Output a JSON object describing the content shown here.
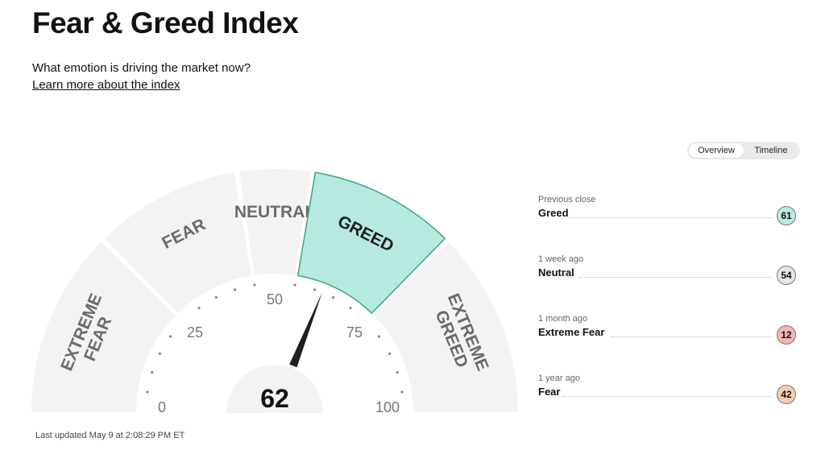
{
  "header": {
    "title": "Fear & Greed Index",
    "subtitle": "What emotion is driving the market now?",
    "learn_more": "Learn more about the index"
  },
  "view_toggle": {
    "tabs": [
      {
        "label": "Overview",
        "active": true
      },
      {
        "label": "Timeline",
        "active": false
      }
    ]
  },
  "gauge": {
    "value": 62,
    "value_text": "62",
    "range": [
      0,
      100
    ],
    "segments": [
      {
        "label_lines": [
          "EXTREME",
          "FEAR"
        ],
        "from": 0,
        "to": 25,
        "color": "#f3f3f3",
        "active": false
      },
      {
        "label_lines": [
          "FEAR"
        ],
        "from": 25,
        "to": 45,
        "color": "#f3f3f3",
        "active": false
      },
      {
        "label_lines": [
          "NEUTRAL"
        ],
        "from": 45,
        "to": 55,
        "color": "#f3f3f3",
        "active": false
      },
      {
        "label_lines": [
          "GREED"
        ],
        "from": 55,
        "to": 75,
        "color": "#b6e9e0",
        "active": true
      },
      {
        "label_lines": [
          "EXTREME",
          "GREED"
        ],
        "from": 75,
        "to": 100,
        "color": "#f3f3f3",
        "active": false
      }
    ],
    "ticks": [
      {
        "value": 0,
        "label": "0"
      },
      {
        "value": 25,
        "label": "25"
      },
      {
        "value": 50,
        "label": "50"
      },
      {
        "value": 75,
        "label": "75"
      },
      {
        "value": 100,
        "label": "100"
      }
    ],
    "active_border_color": "#3aa77a",
    "needle_color": "#1f1f1f"
  },
  "last_updated": "Last updated May 9 at 2:08:29 PM ET",
  "history": [
    {
      "period": "Previous close",
      "rating": "Greed",
      "value": "61",
      "color": "#b9ebe0"
    },
    {
      "period": "1 week ago",
      "rating": "Neutral",
      "value": "54",
      "color": "#e6e6e6"
    },
    {
      "period": "1 month ago",
      "rating": "Extreme Fear",
      "value": "12",
      "color": "#f5b6b6"
    },
    {
      "period": "1 year ago",
      "rating": "Fear",
      "value": "42",
      "color": "#f8cdb4"
    }
  ]
}
